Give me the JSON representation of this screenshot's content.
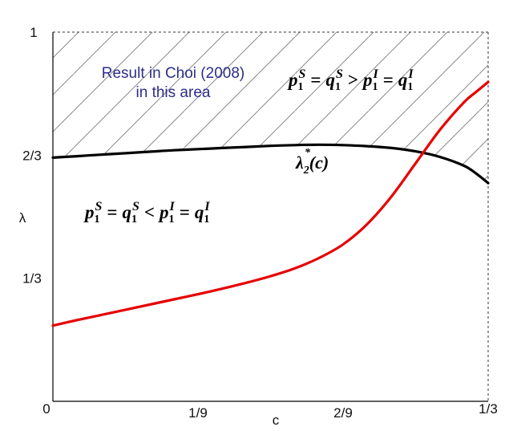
{
  "chart_data": {
    "type": "line",
    "title": "",
    "xlabel": "c",
    "ylabel": "λ",
    "xlim": [
      0,
      0.3333
    ],
    "ylim": [
      0,
      1
    ],
    "x_ticks": [
      {
        "label": "0",
        "value": 0
      },
      {
        "label": "1/9",
        "value": 0.1111
      },
      {
        "label": "2/9",
        "value": 0.2222
      },
      {
        "label": "1/3",
        "value": 0.3333
      }
    ],
    "y_ticks": [
      {
        "label": "0",
        "value": 0
      },
      {
        "label": "1/3",
        "value": 0.3333
      },
      {
        "label": "2/3",
        "value": 0.6667
      },
      {
        "label": "1",
        "value": 1
      }
    ],
    "grid": false,
    "series": [
      {
        "color": "#000000",
        "points": [
          [
            0,
            0.66
          ],
          [
            0.0185,
            0.664
          ],
          [
            0.037,
            0.668
          ],
          [
            0.0556,
            0.672
          ],
          [
            0.0741,
            0.676
          ],
          [
            0.0926,
            0.68
          ],
          [
            0.1111,
            0.683
          ],
          [
            0.1296,
            0.686
          ],
          [
            0.1481,
            0.689
          ],
          [
            0.1667,
            0.692
          ],
          [
            0.1852,
            0.694
          ],
          [
            0.2037,
            0.695
          ],
          [
            0.2222,
            0.694
          ],
          [
            0.2407,
            0.691
          ],
          [
            0.2593,
            0.686
          ],
          [
            0.2778,
            0.677
          ],
          [
            0.2963,
            0.662
          ],
          [
            0.3148,
            0.638
          ],
          [
            0.3241,
            0.617
          ],
          [
            0.3333,
            0.591
          ]
        ]
      },
      {
        "color": "#e60000",
        "points": [
          [
            0,
            0.205
          ],
          [
            0.0185,
            0.22
          ],
          [
            0.037,
            0.234
          ],
          [
            0.0556,
            0.248
          ],
          [
            0.0741,
            0.262
          ],
          [
            0.0926,
            0.276
          ],
          [
            0.1111,
            0.29
          ],
          [
            0.1296,
            0.305
          ],
          [
            0.1481,
            0.321
          ],
          [
            0.1667,
            0.339
          ],
          [
            0.1852,
            0.36
          ],
          [
            0.2037,
            0.388
          ],
          [
            0.2222,
            0.425
          ],
          [
            0.2407,
            0.48
          ],
          [
            0.2593,
            0.555
          ],
          [
            0.2778,
            0.645
          ],
          [
            0.2963,
            0.735
          ],
          [
            0.3148,
            0.81
          ],
          [
            0.3241,
            0.838
          ],
          [
            0.3333,
            0.865
          ]
        ]
      }
    ],
    "annotations": [
      {
        "id": "choi-note-line1",
        "text": "Result in Choi (2008)"
      },
      {
        "id": "choi-note-line2",
        "text": "in this area"
      },
      {
        "id": "curve-label",
        "text": "λ*2(c)"
      },
      {
        "id": "upper-region-formula",
        "text": "p1S = q1S > p1I = q1I"
      },
      {
        "id": "lower-region-formula",
        "text": "p1S = q1S < p1I = q1I"
      }
    ],
    "shaded_region": {
      "description_key": "hatched",
      "boundary_series": 0
    }
  },
  "labels": {
    "choi_line1": "Result in Choi (2008)",
    "choi_line2": "in this area",
    "curve_lambda": "λ",
    "curve_star": "*",
    "curve_sub": "2",
    "curve_arg": "(c)",
    "p": "p",
    "q": "q",
    "one": "1",
    "S": "S",
    "I": "I",
    "eq": "=",
    "gt": ">",
    "lt": "<"
  }
}
